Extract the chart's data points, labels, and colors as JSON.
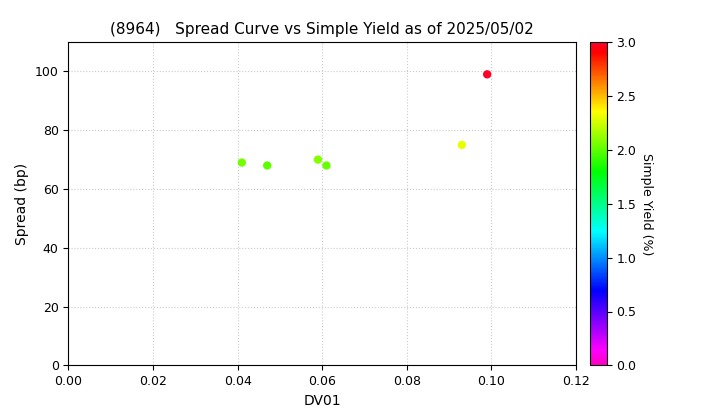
{
  "title": "(8964)   Spread Curve vs Simple Yield as of 2025/05/02",
  "xlabel": "DV01",
  "ylabel": "Spread (bp)",
  "colorbar_label": "Simple Yield (%)",
  "xlim": [
    0.0,
    0.12
  ],
  "ylim": [
    0.0,
    110
  ],
  "xticks": [
    0.0,
    0.02,
    0.04,
    0.06,
    0.08,
    0.1,
    0.12
  ],
  "yticks": [
    0,
    20,
    40,
    60,
    80,
    100
  ],
  "colorbar_ticks": [
    0.0,
    0.5,
    1.0,
    1.5,
    2.0,
    2.5,
    3.0
  ],
  "clim": [
    0.0,
    3.0
  ],
  "points": [
    {
      "dv01": 0.041,
      "spread": 69,
      "yield": 2.05
    },
    {
      "dv01": 0.047,
      "spread": 68,
      "yield": 2.0
    },
    {
      "dv01": 0.059,
      "spread": 70,
      "yield": 2.08
    },
    {
      "dv01": 0.061,
      "spread": 68,
      "yield": 2.02
    },
    {
      "dv01": 0.093,
      "spread": 75,
      "yield": 2.3
    },
    {
      "dv01": 0.099,
      "spread": 99,
      "yield": 3.0
    }
  ],
  "marker_size": 25,
  "cmap": "gist_rainbow_r",
  "background_color": "#ffffff",
  "grid_color": "#cccccc",
  "grid_linestyle": ":",
  "title_fontsize": 11,
  "axis_fontsize": 10,
  "tick_fontsize": 9,
  "colorbar_fontsize": 9
}
